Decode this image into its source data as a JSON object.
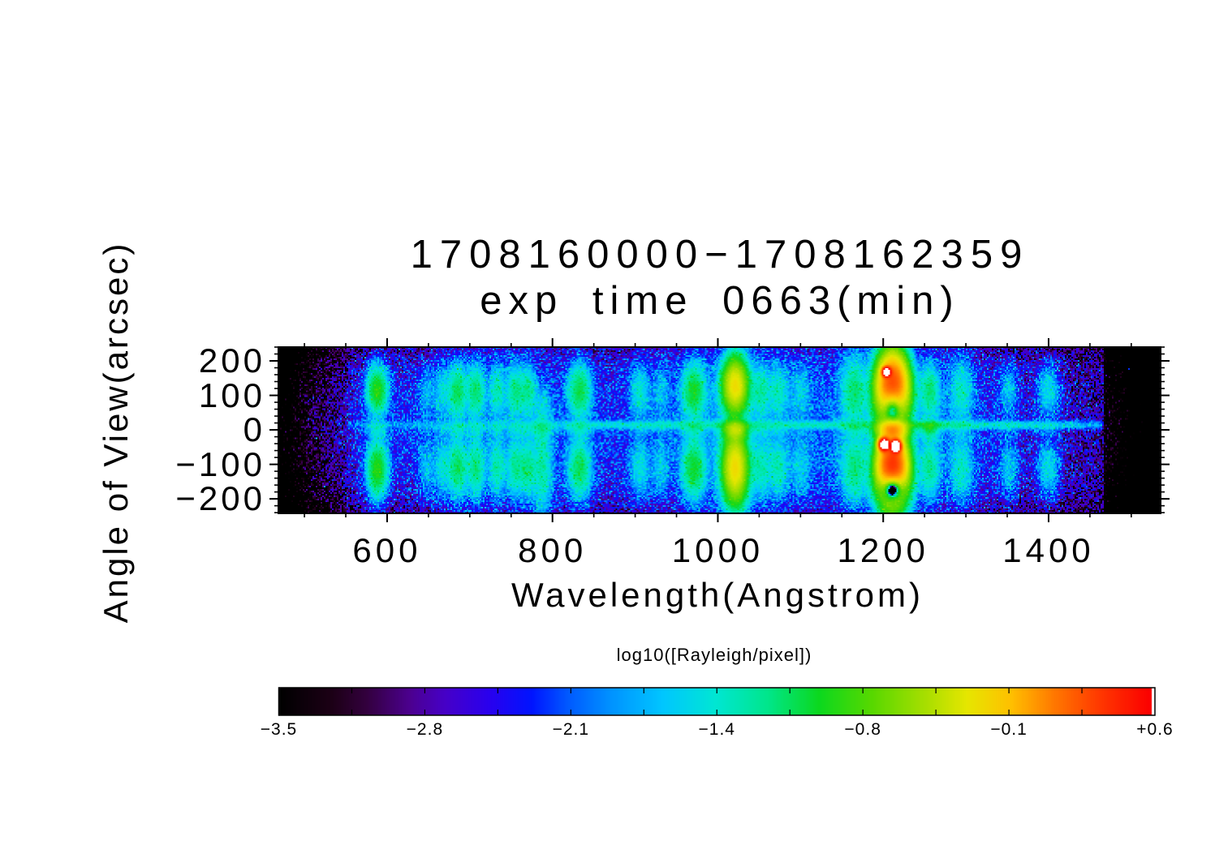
{
  "figure": {
    "title_line1": "1708160000−1708162359",
    "title_line2": "exp time 0663(min)",
    "x_label": "Wavelength(Angstrom)",
    "y_label": "Angle of View(arcsec)"
  },
  "chart_data": {
    "type": "heatmap",
    "title": "1708160000−1708162359 exp time 0663(min)",
    "xlabel": "Wavelength(Angstrom)",
    "ylabel": "Angle of View(arcsec)",
    "x_range": [
      468.5,
      1535.5
    ],
    "y_range": [
      -242,
      240
    ],
    "x_ticks": [
      600,
      800,
      1000,
      1200,
      1400
    ],
    "x_tick_labels": [
      "600",
      "800",
      "1000",
      "1200",
      "1400"
    ],
    "x_minor_step": 50,
    "y_ticks": [
      200,
      100,
      0,
      -100,
      -200
    ],
    "y_tick_labels": [
      "200",
      "100",
      "0",
      "−100",
      "−200"
    ],
    "y_minor_step": 20,
    "data_black_bands_angstrom": [
      [
        468.5,
        551
      ],
      [
        1469,
        1535.5
      ]
    ],
    "colorbar": {
      "label": "log10([Rayleigh/pixel])",
      "range": [
        -3.5,
        0.6
      ],
      "tick_labels": [
        "−3.5",
        "−2.8",
        "−2.1",
        "−1.4",
        "−0.8",
        "−0.1",
        "+0.6"
      ],
      "saturation_color": "#ffffff",
      "stops": [
        [
          0.0,
          "#000000"
        ],
        [
          0.06,
          "#1c0016"
        ],
        [
          0.1,
          "#33003e"
        ],
        [
          0.15,
          "#4c0090"
        ],
        [
          0.19,
          "#4600c8"
        ],
        [
          0.24,
          "#2a00ee"
        ],
        [
          0.29,
          "#0014ff"
        ],
        [
          0.33,
          "#0058ff"
        ],
        [
          0.38,
          "#0092ff"
        ],
        [
          0.44,
          "#00c6ff"
        ],
        [
          0.5,
          "#00e6d4"
        ],
        [
          0.56,
          "#00e68c"
        ],
        [
          0.62,
          "#0cd81e"
        ],
        [
          0.68,
          "#58d800"
        ],
        [
          0.74,
          "#a6de00"
        ],
        [
          0.79,
          "#e6e600"
        ],
        [
          0.84,
          "#ffc000"
        ],
        [
          0.89,
          "#ff7800"
        ],
        [
          0.94,
          "#ff3a00"
        ],
        [
          1.0,
          "#fb0000"
        ]
      ]
    },
    "background_log10": [
      [
        468.5,
        -6
      ],
      [
        549,
        -6
      ],
      [
        552,
        -3.0
      ],
      [
        565,
        -2.9
      ],
      [
        600,
        -2.78
      ],
      [
        650,
        -2.72
      ],
      [
        720,
        -2.7
      ],
      [
        780,
        -2.65
      ],
      [
        840,
        -2.58
      ],
      [
        900,
        -2.52
      ],
      [
        950,
        -2.47
      ],
      [
        1000,
        -2.42
      ],
      [
        1040,
        -2.45
      ],
      [
        1090,
        -2.5
      ],
      [
        1130,
        -2.42
      ],
      [
        1170,
        -2.32
      ],
      [
        1200,
        -2.35
      ],
      [
        1230,
        -2.7
      ],
      [
        1255,
        -2.55
      ],
      [
        1285,
        -2.5
      ],
      [
        1320,
        -2.55
      ],
      [
        1360,
        -2.62
      ],
      [
        1400,
        -2.68
      ],
      [
        1440,
        -2.72
      ],
      [
        1466,
        -2.8
      ],
      [
        1469,
        -6
      ],
      [
        1535.5,
        -6
      ]
    ],
    "center_streak": {
      "y": 14,
      "sigma_y": 7.5,
      "profile_log10": [
        [
          551,
          -6
        ],
        [
          554,
          -2.2
        ],
        [
          580,
          -2.05
        ],
        [
          640,
          -2.0
        ],
        [
          700,
          -1.95
        ],
        [
          760,
          -1.9
        ],
        [
          800,
          -1.75
        ],
        [
          835,
          -1.6
        ],
        [
          870,
          -1.55
        ],
        [
          905,
          -1.6
        ],
        [
          935,
          -1.5
        ],
        [
          970,
          -1.55
        ],
        [
          1000,
          -1.45
        ],
        [
          1021,
          -1.35
        ],
        [
          1050,
          -1.5
        ],
        [
          1080,
          -1.55
        ],
        [
          1120,
          -1.5
        ],
        [
          1165,
          -1.45
        ],
        [
          1211,
          -1.25
        ],
        [
          1256,
          -1.1
        ],
        [
          1300,
          -1.5
        ],
        [
          1370,
          -1.55
        ],
        [
          1430,
          -1.7
        ],
        [
          1465,
          -1.9
        ],
        [
          1469,
          -6
        ]
      ]
    },
    "emission_features": [
      {
        "wavelength": 588,
        "sigma": 7,
        "log10_peak": -0.88,
        "top_amp": 1,
        "bot_amp": 1,
        "mid_amp": 0.22,
        "y_top": 115,
        "sy_top": 38,
        "y_bot": -115,
        "sy_bot": 45
      },
      {
        "wavelength": 648,
        "sigma": 6,
        "log10_peak": -1.8,
        "top_amp": 0.9,
        "bot_amp": 1,
        "mid_amp": 0.25
      },
      {
        "wavelength": 667,
        "sigma": 6,
        "log10_peak": -1.55,
        "top_amp": 0.9,
        "bot_amp": 1,
        "mid_amp": 0.3
      },
      {
        "wavelength": 685,
        "sigma": 6.5,
        "log10_peak": -1.1,
        "top_amp": 1,
        "bot_amp": 0.95,
        "mid_amp": 0.3
      },
      {
        "wavelength": 707,
        "sigma": 6.5,
        "log10_peak": -1.15,
        "top_amp": 1,
        "bot_amp": 0.9,
        "mid_amp": 0.3
      },
      {
        "wavelength": 733,
        "sigma": 6,
        "log10_peak": -1.35,
        "top_amp": 0.95,
        "bot_amp": 1,
        "mid_amp": 0.35
      },
      {
        "wavelength": 755,
        "sigma": 6,
        "log10_peak": -1.25,
        "top_amp": 1,
        "bot_amp": 0.9,
        "mid_amp": 0.3
      },
      {
        "wavelength": 770,
        "sigma": 6,
        "log10_peak": -1.25,
        "top_amp": 0.9,
        "bot_amp": 1,
        "mid_amp": 0.35
      },
      {
        "wavelength": 788,
        "sigma": 7,
        "log10_peak": -1.35,
        "top_amp": 0.45,
        "bot_amp": 1,
        "mid_amp": 0.7,
        "y_top": 60,
        "sy_top": 40,
        "y_bot": -115,
        "sy_bot": 80
      },
      {
        "wavelength": 833,
        "sigma": 8,
        "log10_peak": -1.05,
        "top_amp": 1,
        "bot_amp": 0.9,
        "mid_amp": 0.3
      },
      {
        "wavelength": 906,
        "sigma": 7,
        "log10_peak": -1.5,
        "top_amp": 1,
        "bot_amp": 0.9,
        "mid_amp": 0.25
      },
      {
        "wavelength": 931,
        "sigma": 6,
        "log10_peak": -1.75,
        "top_amp": 0.85,
        "bot_amp": 1,
        "mid_amp": 0.2
      },
      {
        "wavelength": 971,
        "sigma": 8,
        "log10_peak": -1.0,
        "top_amp": 1,
        "bot_amp": 0.95,
        "mid_amp": 0.28
      },
      {
        "wavelength": 1021,
        "sigma": 8.5,
        "log10_peak": -0.2,
        "top_amp": 1,
        "bot_amp": 1.02,
        "mid_amp": 0.5,
        "y_top": 128,
        "sy_top": 44,
        "y_bot": -110,
        "sy_bot": 58
      },
      {
        "wavelength": 1052,
        "sigma": 7,
        "log10_peak": -1.35,
        "top_amp": 1,
        "bot_amp": 0.9,
        "mid_amp": 0.3
      },
      {
        "wavelength": 1073,
        "sigma": 7,
        "log10_peak": -1.4,
        "top_amp": 0.9,
        "bot_amp": 1,
        "mid_amp": 0.3
      },
      {
        "wavelength": 1100,
        "sigma": 7,
        "log10_peak": -1.7,
        "top_amp": 1,
        "bot_amp": 0.9,
        "mid_amp": 0.25
      },
      {
        "wavelength": 1165,
        "sigma": 9,
        "log10_peak": -1.2,
        "top_amp": 1,
        "bot_amp": 0.92,
        "mid_amp": 0.3,
        "sy_top": 55,
        "sy_bot": 55
      },
      {
        "wavelength": 1211,
        "sigma": 10,
        "log10_peak": 0.45,
        "top_amp": 1,
        "bot_amp": 0.98,
        "mid_amp": 0.3,
        "y_top": 113,
        "sy_top": 55,
        "y_bot": -115,
        "sy_bot": 55
      },
      {
        "wavelength": 1256,
        "sigma": 7,
        "log10_peak": -1.15,
        "top_amp": 0.9,
        "bot_amp": 0.75,
        "mid_amp": 0.95
      },
      {
        "wavelength": 1295,
        "sigma": 8,
        "log10_peak": -1.45,
        "top_amp": 1,
        "bot_amp": 0.95,
        "mid_amp": 0.3,
        "sy_top": 55,
        "sy_bot": 55
      },
      {
        "wavelength": 1352,
        "sigma": 7,
        "log10_peak": -1.72,
        "top_amp": 0.95,
        "bot_amp": 1,
        "mid_amp": 0.3
      },
      {
        "wavelength": 1400,
        "sigma": 8,
        "log10_peak": -1.55,
        "top_amp": 1,
        "bot_amp": 0.95,
        "mid_amp": 0.3
      }
    ],
    "saturation_spots": [
      {
        "wavelength": 1204,
        "y": 168,
        "sigma_wl": 3,
        "sigma_y": 8,
        "log10_peak": 0.9
      },
      {
        "wavelength": 1201,
        "y": -42,
        "sigma_wl": 3.5,
        "sigma_y": 10,
        "log10_peak": 0.95
      },
      {
        "wavelength": 1215,
        "y": -47,
        "sigma_wl": 3.5,
        "sigma_y": 10,
        "log10_peak": 0.95
      }
    ],
    "absorption_cores": [
      {
        "wavelength": 1211,
        "y": 80,
        "sigma_wl": 8,
        "sigma_y": 38,
        "log10_depth": 0.3
      },
      {
        "wavelength": 1211,
        "y": -158,
        "sigma_wl": 8,
        "sigma_y": 30,
        "log10_depth": 0.28
      }
    ]
  }
}
